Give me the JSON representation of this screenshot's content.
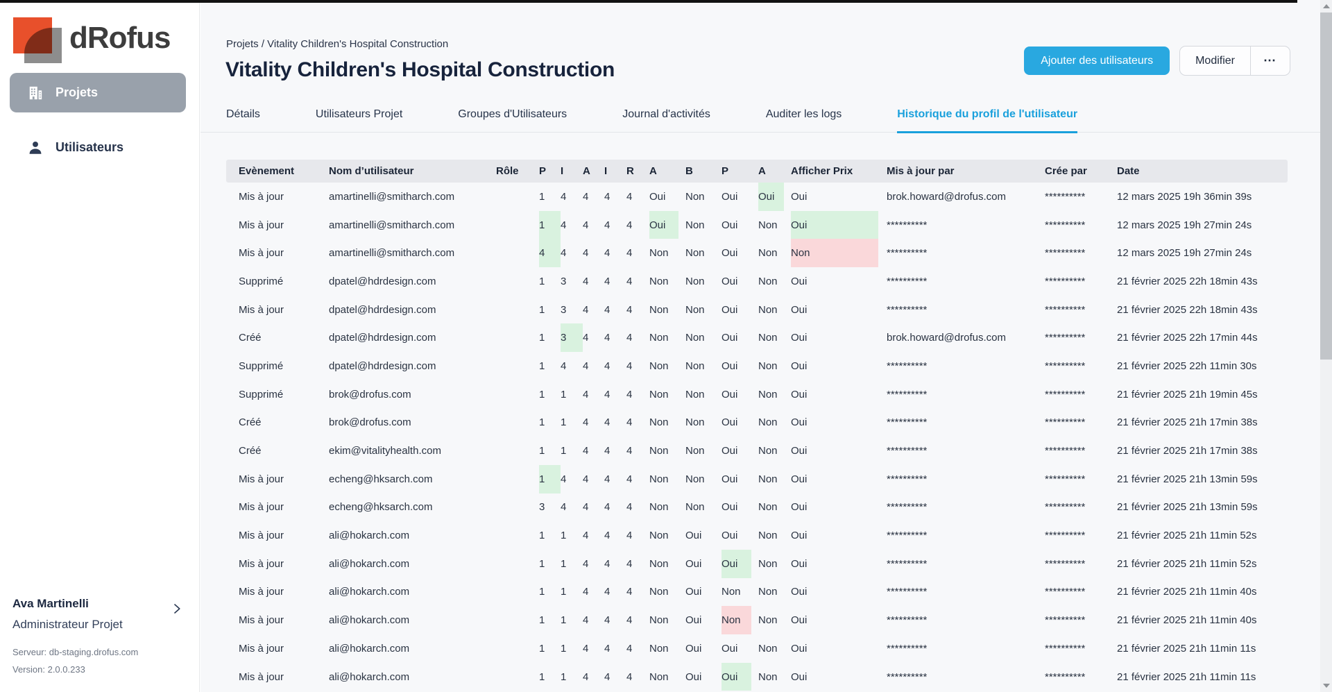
{
  "colors": {
    "accent_blue": "#29a8e0",
    "active_tab_blue": "#19a0dc",
    "highlight_green": "#d9f2df",
    "highlight_red": "#fad8da",
    "header_gray": "#e7e8ec",
    "sidebar_active_gray": "#99a1ab",
    "logo_orange": "#e8502b",
    "logo_gray": "#8d8d8d"
  },
  "sidebar": {
    "logo_text": "dRofus",
    "items": [
      {
        "label": "Projets",
        "icon": "building-icon",
        "active": true
      },
      {
        "label": "Utilisateurs",
        "icon": "person-icon",
        "active": false
      }
    ],
    "user": {
      "name": "Ava Martinelli",
      "role": "Administrateur Projet"
    },
    "server": "Serveur: db-staging.drofus.com",
    "version": "Version: 2.0.0.233"
  },
  "header": {
    "breadcrumb": "Projets / Vitality Children's Hospital Construction",
    "title": "Vitality Children's Hospital Construction",
    "buttons": {
      "add_users": "Ajouter des utilisateurs",
      "edit": "Modifier",
      "more": "⋯"
    }
  },
  "tabs": [
    {
      "label": "Détails",
      "active": false
    },
    {
      "label": "Utilisateurs Projet",
      "active": false
    },
    {
      "label": "Groupes d'Utilisateurs",
      "active": false
    },
    {
      "label": "Journal d'activités",
      "active": false
    },
    {
      "label": "Auditer les logs",
      "active": false
    },
    {
      "label": "Historique du profil de l'utilisateur",
      "active": true
    }
  ],
  "table": {
    "headers": [
      "Evènement",
      "Nom d’utilisateur",
      "Rôle",
      "P",
      "I",
      "A",
      "I",
      "R",
      "A",
      "B",
      "P",
      "A",
      "Afficher Prix",
      "Mis à jour par",
      "Crée par",
      "Date"
    ],
    "rows": [
      {
        "event": "Mis à jour",
        "user": "amartinelli@smitharch.com",
        "role": "",
        "vals": [
          "1",
          "4",
          "4",
          "4",
          "4",
          "Oui",
          "Non",
          "Oui",
          "Oui",
          "Oui"
        ],
        "hl": [
          "",
          "",
          "",
          "",
          "",
          "",
          "",
          "",
          "g",
          ""
        ],
        "upd": "brok.howard@drofus.com",
        "cre": "**********",
        "date": "12 mars 2025 19h 36min 39s"
      },
      {
        "event": "Mis à jour",
        "user": "amartinelli@smitharch.com",
        "role": "",
        "vals": [
          "1",
          "4",
          "4",
          "4",
          "4",
          "Oui",
          "Non",
          "Oui",
          "Non",
          "Oui"
        ],
        "hl": [
          "g",
          "",
          "",
          "",
          "",
          "g",
          "",
          "",
          "",
          "g"
        ],
        "upd": "**********",
        "cre": "**********",
        "date": "12 mars 2025 19h 27min 24s"
      },
      {
        "event": "Mis à jour",
        "user": "amartinelli@smitharch.com",
        "role": "",
        "vals": [
          "4",
          "4",
          "4",
          "4",
          "4",
          "Non",
          "Non",
          "Oui",
          "Non",
          "Non"
        ],
        "hl": [
          "g",
          "",
          "",
          "",
          "",
          "",
          "",
          "",
          "",
          "r"
        ],
        "upd": "**********",
        "cre": "**********",
        "date": "12 mars 2025 19h 27min 24s"
      },
      {
        "event": "Supprimé",
        "user": "dpatel@hdrdesign.com",
        "role": "",
        "vals": [
          "1",
          "3",
          "4",
          "4",
          "4",
          "Non",
          "Non",
          "Oui",
          "Non",
          "Oui"
        ],
        "hl": [
          "",
          "",
          "",
          "",
          "",
          "",
          "",
          "",
          "",
          ""
        ],
        "upd": "**********",
        "cre": "**********",
        "date": "21 février 2025 22h 18min 43s"
      },
      {
        "event": "Mis à jour",
        "user": "dpatel@hdrdesign.com",
        "role": "",
        "vals": [
          "1",
          "3",
          "4",
          "4",
          "4",
          "Non",
          "Non",
          "Oui",
          "Non",
          "Oui"
        ],
        "hl": [
          "",
          "",
          "",
          "",
          "",
          "",
          "",
          "",
          "",
          ""
        ],
        "upd": "**********",
        "cre": "**********",
        "date": "21 février 2025 22h 18min 43s"
      },
      {
        "event": "Créé",
        "user": "dpatel@hdrdesign.com",
        "role": "",
        "vals": [
          "1",
          "3",
          "4",
          "4",
          "4",
          "Non",
          "Non",
          "Oui",
          "Non",
          "Oui"
        ],
        "hl": [
          "",
          "g",
          "",
          "",
          "",
          "",
          "",
          "",
          "",
          ""
        ],
        "upd": "brok.howard@drofus.com",
        "cre": "**********",
        "date": "21 février 2025 22h 17min 44s"
      },
      {
        "event": "Supprimé",
        "user": "dpatel@hdrdesign.com",
        "role": "",
        "vals": [
          "1",
          "4",
          "4",
          "4",
          "4",
          "Non",
          "Non",
          "Oui",
          "Non",
          "Oui"
        ],
        "hl": [
          "",
          "",
          "",
          "",
          "",
          "",
          "",
          "",
          "",
          ""
        ],
        "upd": "**********",
        "cre": "**********",
        "date": "21 février 2025 22h 11min 30s"
      },
      {
        "event": "Supprimé",
        "user": "brok@drofus.com",
        "role": "",
        "vals": [
          "1",
          "1",
          "4",
          "4",
          "4",
          "Non",
          "Non",
          "Oui",
          "Non",
          "Oui"
        ],
        "hl": [
          "",
          "",
          "",
          "",
          "",
          "",
          "",
          "",
          "",
          ""
        ],
        "upd": "**********",
        "cre": "**********",
        "date": "21 février 2025 21h 19min 45s"
      },
      {
        "event": "Créé",
        "user": "brok@drofus.com",
        "role": "",
        "vals": [
          "1",
          "1",
          "4",
          "4",
          "4",
          "Non",
          "Non",
          "Oui",
          "Non",
          "Oui"
        ],
        "hl": [
          "",
          "",
          "",
          "",
          "",
          "",
          "",
          "",
          "",
          ""
        ],
        "upd": "**********",
        "cre": "**********",
        "date": "21 février 2025 21h 17min 38s"
      },
      {
        "event": "Créé",
        "user": "ekim@vitalityhealth.com",
        "role": "",
        "vals": [
          "1",
          "1",
          "4",
          "4",
          "4",
          "Non",
          "Non",
          "Oui",
          "Non",
          "Oui"
        ],
        "hl": [
          "",
          "",
          "",
          "",
          "",
          "",
          "",
          "",
          "",
          ""
        ],
        "upd": "**********",
        "cre": "**********",
        "date": "21 février 2025 21h 17min 38s"
      },
      {
        "event": "Mis à jour",
        "user": "echeng@hksarch.com",
        "role": "",
        "vals": [
          "1",
          "4",
          "4",
          "4",
          "4",
          "Non",
          "Non",
          "Oui",
          "Non",
          "Oui"
        ],
        "hl": [
          "g",
          "",
          "",
          "",
          "",
          "",
          "",
          "",
          "",
          ""
        ],
        "upd": "**********",
        "cre": "**********",
        "date": "21 février 2025 21h 13min 59s"
      },
      {
        "event": "Mis à jour",
        "user": "echeng@hksarch.com",
        "role": "",
        "vals": [
          "3",
          "4",
          "4",
          "4",
          "4",
          "Non",
          "Non",
          "Oui",
          "Non",
          "Oui"
        ],
        "hl": [
          "",
          "",
          "",
          "",
          "",
          "",
          "",
          "",
          "",
          ""
        ],
        "upd": "**********",
        "cre": "**********",
        "date": "21 février 2025 21h 13min 59s"
      },
      {
        "event": "Mis à jour",
        "user": "ali@hokarch.com",
        "role": "",
        "vals": [
          "1",
          "1",
          "4",
          "4",
          "4",
          "Non",
          "Oui",
          "Oui",
          "Non",
          "Oui"
        ],
        "hl": [
          "",
          "",
          "",
          "",
          "",
          "",
          "",
          "",
          "",
          ""
        ],
        "upd": "**********",
        "cre": "**********",
        "date": "21 février 2025 21h 11min 52s"
      },
      {
        "event": "Mis à jour",
        "user": "ali@hokarch.com",
        "role": "",
        "vals": [
          "1",
          "1",
          "4",
          "4",
          "4",
          "Non",
          "Oui",
          "Oui",
          "Non",
          "Oui"
        ],
        "hl": [
          "",
          "",
          "",
          "",
          "",
          "",
          "",
          "g",
          "",
          ""
        ],
        "upd": "**********",
        "cre": "**********",
        "date": "21 février 2025 21h 11min 52s"
      },
      {
        "event": "Mis à jour",
        "user": "ali@hokarch.com",
        "role": "",
        "vals": [
          "1",
          "1",
          "4",
          "4",
          "4",
          "Non",
          "Oui",
          "Non",
          "Non",
          "Oui"
        ],
        "hl": [
          "",
          "",
          "",
          "",
          "",
          "",
          "",
          "",
          "",
          ""
        ],
        "upd": "**********",
        "cre": "**********",
        "date": "21 février 2025 21h 11min 40s"
      },
      {
        "event": "Mis à jour",
        "user": "ali@hokarch.com",
        "role": "",
        "vals": [
          "1",
          "1",
          "4",
          "4",
          "4",
          "Non",
          "Oui",
          "Non",
          "Non",
          "Oui"
        ],
        "hl": [
          "",
          "",
          "",
          "",
          "",
          "",
          "",
          "r",
          "",
          ""
        ],
        "upd": "**********",
        "cre": "**********",
        "date": "21 février 2025 21h 11min 40s"
      },
      {
        "event": "Mis à jour",
        "user": "ali@hokarch.com",
        "role": "",
        "vals": [
          "1",
          "1",
          "4",
          "4",
          "4",
          "Non",
          "Oui",
          "Oui",
          "Non",
          "Oui"
        ],
        "hl": [
          "",
          "",
          "",
          "",
          "",
          "",
          "",
          "",
          "",
          ""
        ],
        "upd": "**********",
        "cre": "**********",
        "date": "21 février 2025 21h 11min 11s"
      },
      {
        "event": "Mis à jour",
        "user": "ali@hokarch.com",
        "role": "",
        "vals": [
          "1",
          "1",
          "4",
          "4",
          "4",
          "Non",
          "Oui",
          "Oui",
          "Non",
          "Oui"
        ],
        "hl": [
          "",
          "",
          "",
          "",
          "",
          "",
          "",
          "g",
          "",
          ""
        ],
        "upd": "**********",
        "cre": "**********",
        "date": "21 février 2025 21h 11min 11s"
      }
    ]
  }
}
